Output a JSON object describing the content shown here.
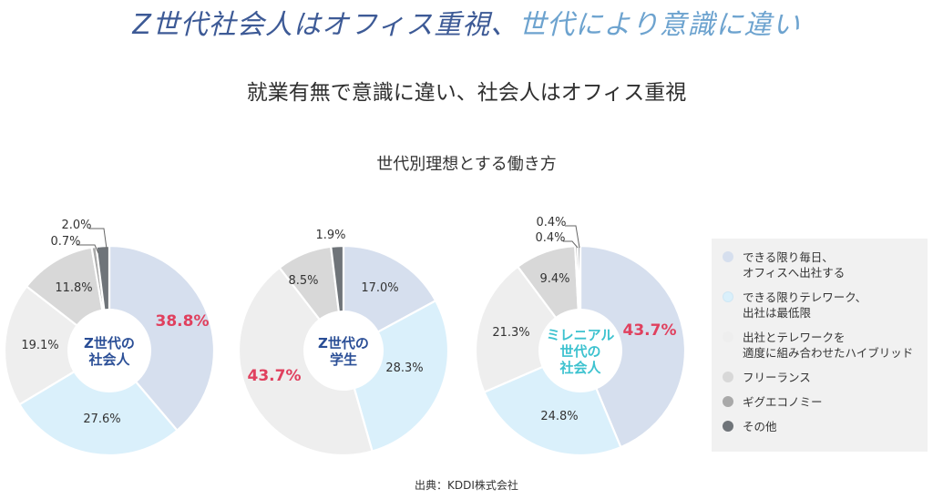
{
  "header": {
    "headline_part1": "Z世代社会人はオフィス重視、",
    "headline_part2": "世代により意識に違い",
    "subtitle": "就業有無で意識に違い、社会人はオフィス重視",
    "chart_title": "世代別理想とする働き方"
  },
  "source": "出典：KDDI株式会社",
  "colors": {
    "office": "#d6dfee",
    "telework": "#daf0fb",
    "hybrid": "#eeeeee",
    "freelance": "#d8d8d8",
    "gig": "#a9a9a9",
    "other": "#6f7479",
    "highlight": "#e0405e",
    "center_text_dark": "#2a4e96",
    "center_text_light": "#3cc2cf"
  },
  "chart_data": {
    "type": "pie",
    "categories": [
      "できる限り毎日、\nオフィスへ出社する",
      "できる限りテレワーク、\n出社は最低限",
      "出社とテレワークを\n適度に組み合わせたハイブリッド",
      "フリーランス",
      "ギグエコノミー",
      "その他"
    ],
    "series": [
      {
        "name": "Z世代の\n社会人",
        "values": [
          38.8,
          27.6,
          19.1,
          11.8,
          0.7,
          2.0
        ],
        "labels": [
          "38.8%",
          "27.6%",
          "19.1%",
          "11.8%",
          "0.7%",
          "2.0%"
        ],
        "highlight_index": 0
      },
      {
        "name": "Z世代の\n学生",
        "values": [
          17.0,
          28.3,
          43.7,
          8.5,
          0,
          1.9
        ],
        "labels": [
          "17.0%",
          "28.3%",
          "43.7%",
          "8.5%",
          "",
          "1.9%"
        ],
        "highlight_index": 2
      },
      {
        "name": "ミレニアル\n世代の\n社会人",
        "values": [
          43.7,
          24.8,
          21.3,
          9.4,
          0.4,
          0.4
        ],
        "labels": [
          "43.7%",
          "24.8%",
          "21.3%",
          "9.4%",
          "0.4%",
          "0.4%"
        ],
        "highlight_index": 0
      }
    ],
    "legend_position": "right"
  }
}
